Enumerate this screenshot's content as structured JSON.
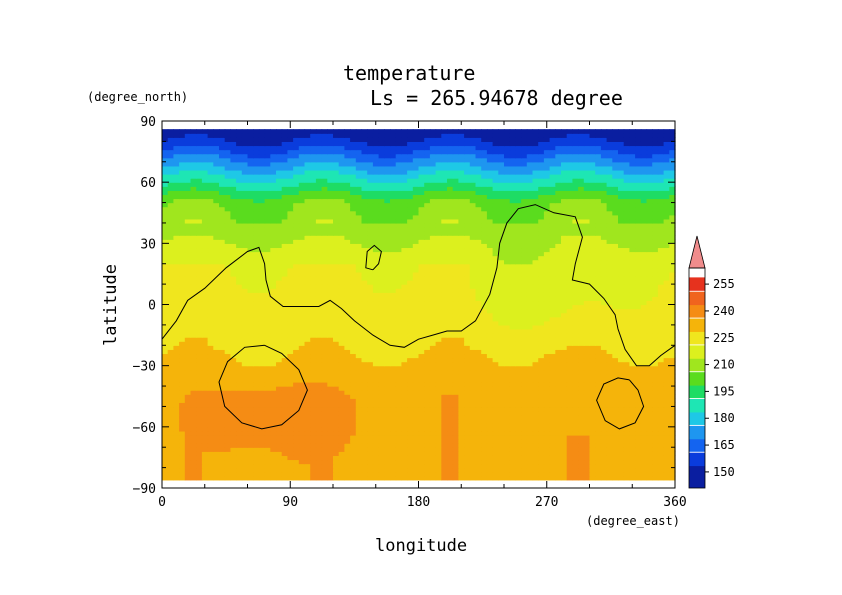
{
  "chart_data": {
    "type": "heatmap",
    "title": "temperature",
    "subtitle": "Ls = 265.94678 degree",
    "xlabel": "longitude",
    "ylabel": "latitude",
    "x_units": "(degree_east)",
    "y_units": "(degree_north)",
    "xlim": [
      0,
      360
    ],
    "ylim": [
      -90,
      90
    ],
    "x_ticks": [
      0,
      90,
      180,
      270,
      360
    ],
    "y_ticks": [
      90,
      60,
      30,
      0,
      -30,
      -60,
      -90
    ],
    "colorbar": {
      "levels": [
        255,
        240,
        225,
        210,
        195,
        180,
        165,
        150
      ],
      "min": 141,
      "max": 264,
      "extend": "max"
    },
    "data_lat_range": [
      -86,
      86
    ],
    "contour_level": 225,
    "contours": [
      [
        [
          0,
          -17
        ],
        [
          10,
          -8
        ],
        [
          18,
          2
        ],
        [
          30,
          8
        ],
        [
          45,
          18
        ],
        [
          60,
          26
        ],
        [
          68,
          28
        ],
        [
          72,
          20
        ],
        [
          73,
          12
        ],
        [
          76,
          4
        ],
        [
          85,
          -1
        ],
        [
          100,
          -1
        ],
        [
          110,
          -1
        ],
        [
          118,
          2
        ],
        [
          126,
          -2
        ],
        [
          135,
          -8
        ],
        [
          148,
          -15
        ],
        [
          160,
          -20
        ],
        [
          170,
          -21
        ],
        [
          180,
          -17
        ],
        [
          190,
          -15
        ],
        [
          200,
          -13
        ],
        [
          210,
          -13
        ],
        [
          220,
          -8
        ],
        [
          230,
          5
        ],
        [
          235,
          18
        ],
        [
          237,
          30
        ],
        [
          242,
          40
        ],
        [
          250,
          47
        ],
        [
          262,
          49
        ],
        [
          275,
          45
        ],
        [
          290,
          43
        ],
        [
          295,
          33
        ],
        [
          290,
          20
        ],
        [
          288,
          12
        ],
        [
          300,
          10
        ],
        [
          310,
          3
        ],
        [
          318,
          -5
        ],
        [
          320,
          -12
        ],
        [
          325,
          -22
        ],
        [
          333,
          -30
        ],
        [
          342,
          -30
        ],
        [
          350,
          -25
        ],
        [
          360,
          -20
        ]
      ],
      [
        [
          72,
          -20
        ],
        [
          84,
          -24
        ],
        [
          96,
          -32
        ],
        [
          102,
          -42
        ],
        [
          96,
          -52
        ],
        [
          84,
          -59
        ],
        [
          70,
          -61
        ],
        [
          56,
          -58
        ],
        [
          44,
          -50
        ],
        [
          40,
          -38
        ],
        [
          46,
          -28
        ],
        [
          58,
          -21
        ],
        [
          72,
          -20
        ]
      ],
      [
        [
          148,
          17
        ],
        [
          152,
          20
        ],
        [
          154,
          26
        ],
        [
          149,
          29
        ],
        [
          144,
          26
        ],
        [
          143,
          18
        ],
        [
          148,
          17
        ]
      ],
      [
        [
          328,
          -37
        ],
        [
          334,
          -42
        ],
        [
          338,
          -50
        ],
        [
          332,
          -58
        ],
        [
          321,
          -61
        ],
        [
          311,
          -57
        ],
        [
          305,
          -47
        ],
        [
          310,
          -39
        ],
        [
          320,
          -36
        ],
        [
          328,
          -37
        ]
      ]
    ]
  }
}
